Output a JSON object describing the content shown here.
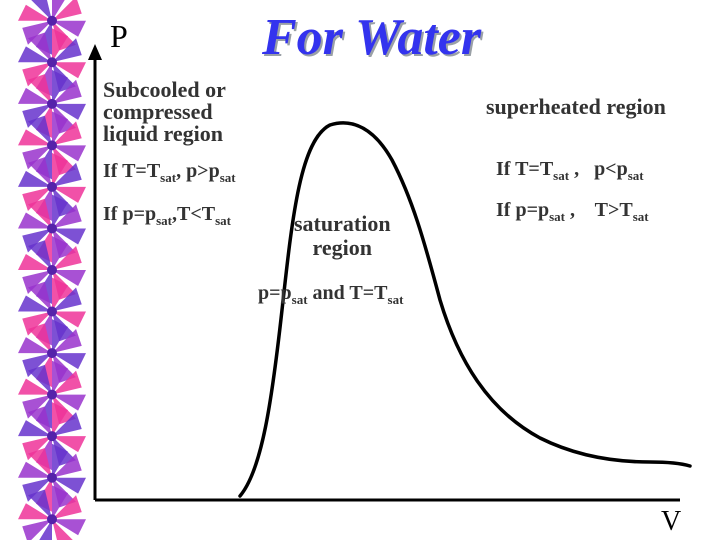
{
  "slide": {
    "title": "For Water",
    "y_axis_label": "P",
    "x_axis_label": "V"
  },
  "regions": {
    "subcooled": {
      "label": "Subcooled or\ncompressed\nliquid region",
      "cond1": {
        "pre": "If T=T",
        "sub1": "sat",
        "mid": ", p>p",
        "sub2": "sat"
      },
      "cond2": {
        "pre": "If p=p",
        "sub1": "sat",
        "mid": ",T<T",
        "sub2": "sat"
      }
    },
    "superheated": {
      "label": "superheated region",
      "cond1": {
        "pre": "If T=T",
        "sub1": "sat",
        "mid": " ,   p<p",
        "sub2": "sat"
      },
      "cond2": {
        "pre": "If p=p",
        "sub1": "sat",
        "mid": " ,    T>T",
        "sub2": "sat"
      }
    },
    "saturation": {
      "label": "saturation\nregion",
      "cond": {
        "pre": "p=p",
        "sub1": "sat",
        "mid": " and T=T",
        "sub2": "sat"
      }
    }
  },
  "colors": {
    "title": "#3333ee",
    "curve": "#000000",
    "pinwheel_a": "#9933cc",
    "pinwheel_b": "#ee3399",
    "pinwheel_c": "#6633cc"
  },
  "decor": {
    "pinwheel_count": 13,
    "icon": "pinwheel-border-icon"
  }
}
